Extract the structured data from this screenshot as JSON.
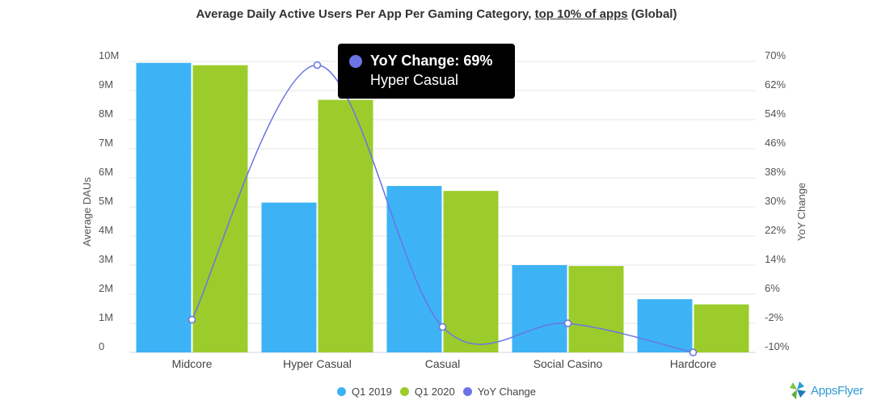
{
  "title": {
    "part1": "Average Daily Active Users Per App Per Gaming Category, ",
    "part2": "top 10% of apps",
    "part3": " (Global)"
  },
  "tooltip": {
    "line1": "YoY Change: 69%",
    "line2": "Hyper Casual"
  },
  "logo": {
    "text": "AppsFlyer"
  },
  "colors": {
    "q1_2019": "#3db3f5",
    "q1_2020": "#9ccc2b",
    "yoy": "#6b74e4"
  },
  "chart_data": {
    "type": "bar",
    "title": "Average Daily Active Users Per App Per Gaming Category, top 10% of apps (Global)",
    "categories": [
      "Midcore",
      "Hyper Casual",
      "Casual",
      "Social Casino",
      "Hardcore"
    ],
    "series": [
      {
        "name": "Q1 2019",
        "type": "bar",
        "axis": "left",
        "values": [
          9950000,
          5150000,
          5720000,
          3000000,
          1830000
        ]
      },
      {
        "name": "Q1 2020",
        "type": "bar",
        "axis": "left",
        "values": [
          9870000,
          8680000,
          5550000,
          2970000,
          1650000
        ]
      },
      {
        "name": "YoY Change",
        "type": "spline",
        "axis": "right",
        "values": [
          -1,
          69,
          -3,
          -2,
          -10
        ]
      }
    ],
    "ylabel": "Average DAUs",
    "ylabel_right": "YoY Change",
    "ylim": [
      0,
      10000000
    ],
    "ylim_right": [
      -10,
      70
    ],
    "yticks": [
      "0",
      "1M",
      "2M",
      "3M",
      "4M",
      "5M",
      "6M",
      "7M",
      "8M",
      "9M",
      "10M"
    ],
    "yticks_right": [
      "-10%",
      "-2%",
      "6%",
      "14%",
      "22%",
      "30%",
      "38%",
      "46%",
      "54%",
      "62%",
      "70%"
    ],
    "legend_position": "bottom",
    "grid": true
  }
}
